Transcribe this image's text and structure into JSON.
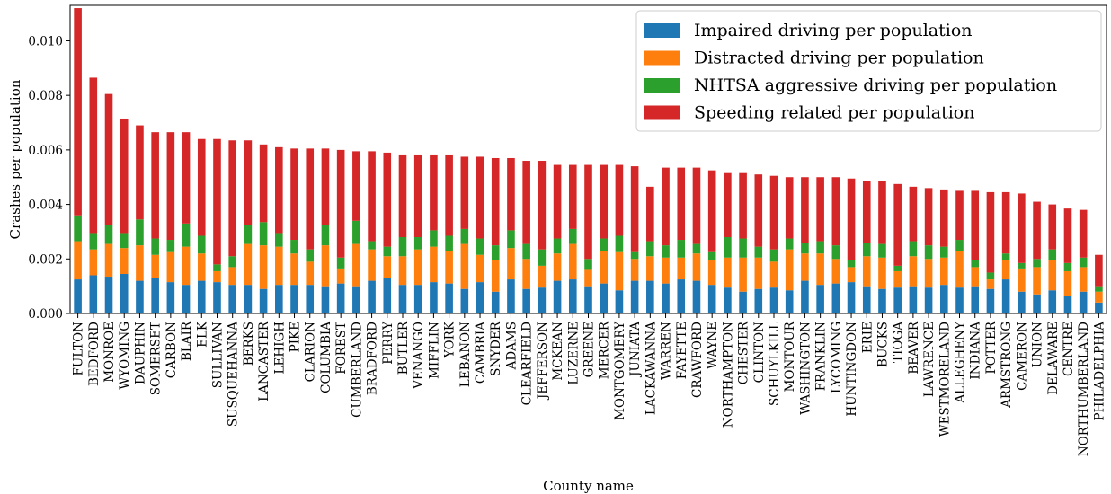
{
  "chart_data": {
    "type": "bar",
    "stacked": true,
    "title": "",
    "xlabel": "County name",
    "ylabel": "Crashes per population",
    "ylim": [
      0,
      0.0113
    ],
    "yticks": [
      "0.000",
      "0.002",
      "0.004",
      "0.006",
      "0.008",
      "0.010"
    ],
    "ytick_values": [
      0,
      0.002,
      0.004,
      0.006,
      0.008,
      0.01
    ],
    "grid": false,
    "legend_position": "top-right",
    "categories": [
      "FULTON",
      "BEDFORD",
      "MONROE",
      "WYOMING",
      "DAUPHIN",
      "SOMERSET",
      "CARBON",
      "BLAIR",
      "ELK",
      "SULLIVAN",
      "SUSQUEHANNA",
      "BERKS",
      "LANCASTER",
      "LEHIGH",
      "PIKE",
      "CLARION",
      "COLUMBIA",
      "FOREST",
      "CUMBERLAND",
      "BRADFORD",
      "PERRY",
      "BUTLER",
      "VENANGO",
      "MIFFLIN",
      "YORK",
      "LEBANON",
      "CAMBRIA",
      "SNYDER",
      "ADAMS",
      "CLEARFIELD",
      "JEFFERSON",
      "MCKEAN",
      "LUZERNE",
      "GREENE",
      "MERCER",
      "MONTGOMERY",
      "JUNIATA",
      "LACKAWANNA",
      "WARREN",
      "FAYETTE",
      "CRAWFORD",
      "WAYNE",
      "NORTHAMPTON",
      "CHESTER",
      "CLINTON",
      "SCHUYLKILL",
      "MONTOUR",
      "WASHINGTON",
      "FRANKLIN",
      "LYCOMING",
      "HUNTINGDON",
      "ERIE",
      "BUCKS",
      "TIOGA",
      "BEAVER",
      "LAWRENCE",
      "WESTMORELAND",
      "ALLEGHENY",
      "INDIANA",
      "POTTER",
      "ARMSTRONG",
      "CAMERON",
      "UNION",
      "DELAWARE",
      "CENTRE",
      "NORTHUMBERLAND",
      "PHILADELPHIA"
    ],
    "series": [
      {
        "name": "Impaired driving per population",
        "color": "#1f77b4",
        "values": [
          0.00125,
          0.0014,
          0.00135,
          0.00145,
          0.0012,
          0.0013,
          0.00115,
          0.00105,
          0.0012,
          0.00115,
          0.00105,
          0.00105,
          0.0009,
          0.00105,
          0.00105,
          0.00105,
          0.001,
          0.0011,
          0.001,
          0.0012,
          0.0013,
          0.00105,
          0.00105,
          0.00115,
          0.0011,
          0.0009,
          0.00115,
          0.0008,
          0.00125,
          0.0009,
          0.00095,
          0.0012,
          0.00125,
          0.001,
          0.0011,
          0.00085,
          0.0012,
          0.0012,
          0.0011,
          0.00125,
          0.0012,
          0.00105,
          0.00095,
          0.0008,
          0.0009,
          0.00095,
          0.00085,
          0.0012,
          0.00105,
          0.0011,
          0.00115,
          0.001,
          0.0009,
          0.00095,
          0.001,
          0.00095,
          0.00105,
          0.00095,
          0.001,
          0.0009,
          0.00125,
          0.0008,
          0.0007,
          0.00085,
          0.00065,
          0.0008,
          0.0004
        ]
      },
      {
        "name": "Distracted driving per population",
        "color": "#ff7f0e",
        "values": [
          0.0014,
          0.00095,
          0.0012,
          0.00095,
          0.0013,
          0.00085,
          0.0011,
          0.0014,
          0.001,
          0.0004,
          0.00065,
          0.0015,
          0.0016,
          0.0014,
          0.00115,
          0.00085,
          0.0015,
          0.00055,
          0.00155,
          0.00115,
          0.0008,
          0.00105,
          0.0013,
          0.0013,
          0.0012,
          0.00165,
          0.001,
          0.00115,
          0.00115,
          0.0011,
          0.0008,
          0.001,
          0.0013,
          0.0006,
          0.0012,
          0.0014,
          0.0008,
          0.0009,
          0.00095,
          0.0008,
          0.001,
          0.0009,
          0.0011,
          0.00125,
          0.00115,
          0.00095,
          0.0015,
          0.001,
          0.00115,
          0.0009,
          0.00055,
          0.0011,
          0.00115,
          0.0006,
          0.0011,
          0.00105,
          0.001,
          0.00135,
          0.0007,
          0.00035,
          0.0007,
          0.00085,
          0.001,
          0.0011,
          0.0009,
          0.0009,
          0.0004
        ]
      },
      {
        "name": "NHTSA aggressive driving per population",
        "color": "#2ca02c",
        "values": [
          0.00095,
          0.0006,
          0.0007,
          0.00055,
          0.00095,
          0.0006,
          0.00045,
          0.00085,
          0.00065,
          0.00025,
          0.0004,
          0.0007,
          0.00085,
          0.0005,
          0.0005,
          0.00045,
          0.00075,
          0.0004,
          0.00085,
          0.0003,
          0.00035,
          0.0007,
          0.00045,
          0.0006,
          0.00055,
          0.00055,
          0.0006,
          0.00055,
          0.00065,
          0.00055,
          0.0006,
          0.00055,
          0.00055,
          0.0004,
          0.00045,
          0.0006,
          0.00025,
          0.00055,
          0.00045,
          0.00065,
          0.00035,
          0.0003,
          0.00075,
          0.0007,
          0.0004,
          0.00045,
          0.0004,
          0.0004,
          0.00045,
          0.0005,
          0.00025,
          0.0005,
          0.0005,
          0.0002,
          0.00055,
          0.0005,
          0.0004,
          0.0004,
          0.00025,
          0.00025,
          0.00025,
          0.0002,
          0.0003,
          0.0004,
          0.0003,
          0.00035,
          0.0002
        ]
      },
      {
        "name": "Speeding related per population",
        "color": "#d62728",
        "values": [
          0.0076,
          0.0057,
          0.0048,
          0.0042,
          0.00345,
          0.0039,
          0.00395,
          0.00335,
          0.00355,
          0.0046,
          0.00425,
          0.0031,
          0.00285,
          0.00315,
          0.00335,
          0.0037,
          0.0028,
          0.00395,
          0.00255,
          0.0033,
          0.00345,
          0.003,
          0.003,
          0.00275,
          0.00295,
          0.00265,
          0.003,
          0.0032,
          0.00265,
          0.00305,
          0.00325,
          0.0027,
          0.00235,
          0.00345,
          0.0027,
          0.0026,
          0.00315,
          0.002,
          0.00285,
          0.00265,
          0.0028,
          0.003,
          0.00235,
          0.0024,
          0.00265,
          0.0027,
          0.00225,
          0.0024,
          0.00235,
          0.0025,
          0.003,
          0.00225,
          0.0023,
          0.003,
          0.002,
          0.0021,
          0.0021,
          0.0018,
          0.00255,
          0.00295,
          0.00225,
          0.00255,
          0.0021,
          0.00165,
          0.002,
          0.00175,
          0.00115
        ]
      }
    ]
  }
}
